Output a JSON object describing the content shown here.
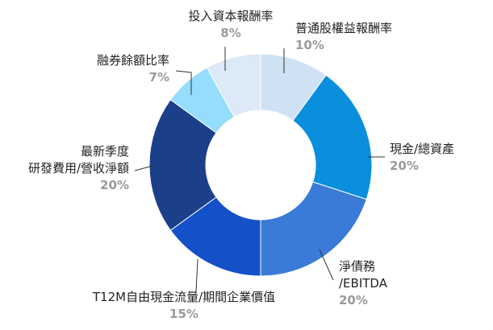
{
  "chart_data": {
    "type": "pie",
    "title": "",
    "slices": [
      {
        "label": [
          "普通股權益報酬率"
        ],
        "value": 10,
        "value_label": "10%",
        "color": "#cfe2f4"
      },
      {
        "label": [
          "現金/總資產"
        ],
        "value": 20,
        "value_label": "20%",
        "color": "#0a8fdc"
      },
      {
        "label": [
          "淨債務",
          "/EBITDA"
        ],
        "value": 20,
        "value_label": "20%",
        "color": "#3a7bd8"
      },
      {
        "label": [
          "T12M自由現金流量/期間企業價值"
        ],
        "value": 15,
        "value_label": "15%",
        "color": "#1450c8"
      },
      {
        "label": [
          "最新季度",
          "研發費用/營收淨額"
        ],
        "value": 20,
        "value_label": "20%",
        "color": "#1c3f8a"
      },
      {
        "label": [
          "融券餘額比率"
        ],
        "value": 7,
        "value_label": "7%",
        "color": "#96dcfb"
      },
      {
        "label": [
          "投入資本報酬率"
        ],
        "value": 8,
        "value_label": "8%",
        "color": "#dce9f6"
      }
    ]
  }
}
